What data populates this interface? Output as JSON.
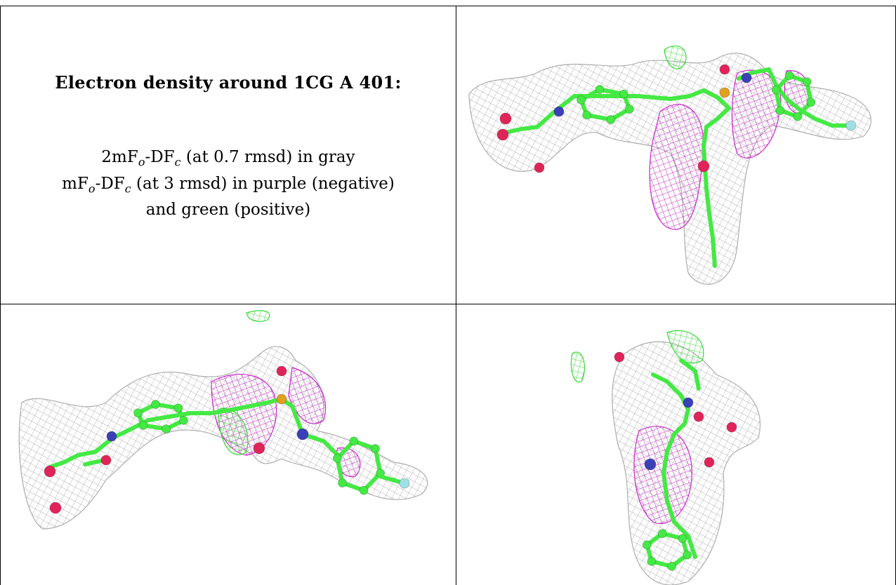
{
  "caption": {
    "title": "Electron density around 1CG A 401:",
    "line1": {
      "prefix": "2mF",
      "s1": "o",
      "mid": "-DF",
      "s2": "c",
      "suffix": " (at 0.7 rmsd) in gray"
    },
    "line2": {
      "prefix": "mF",
      "s1": "o",
      "mid": "-DF",
      "s2": "c",
      "suffix": " (at 3 rmsd) in purple (negative)"
    },
    "line3": "and green (positive)"
  },
  "colors": {
    "mesh_2fofc": "#a9a9a9",
    "mesh_negative": "#c21ec2",
    "mesh_positive": "#2ed62e",
    "carbon": "#44e944",
    "oxygen": "#e0245a",
    "nitrogen": "#3b3fb8",
    "sulfur": "#e0a020",
    "fluorine": "#9fe0e6"
  },
  "views": [
    {
      "name": "view-top-right"
    },
    {
      "name": "view-bottom-left"
    },
    {
      "name": "view-bottom-right"
    }
  ]
}
